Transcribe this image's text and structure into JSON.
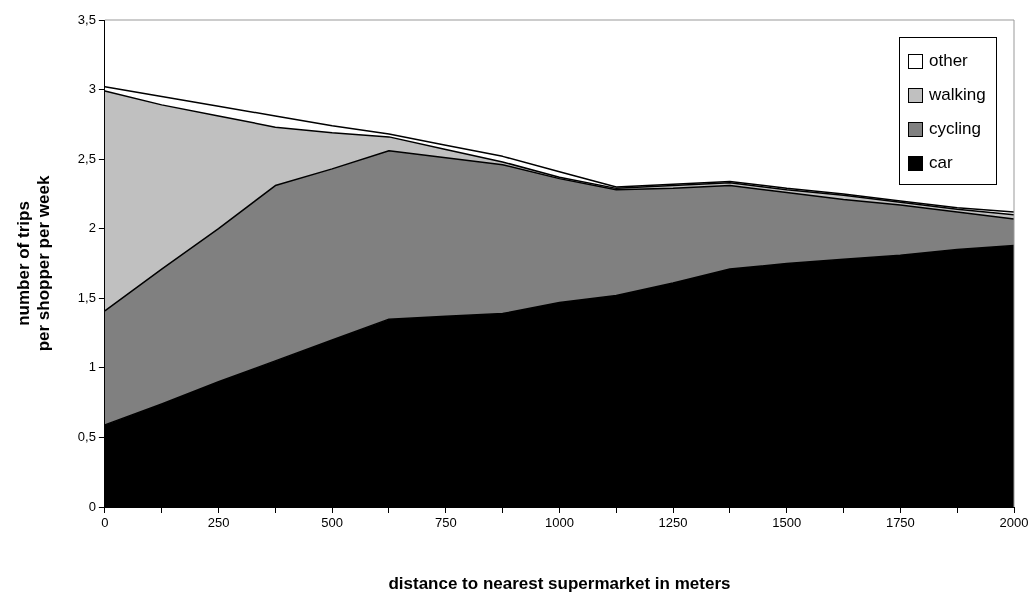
{
  "chart_data": {
    "type": "area",
    "stacked": true,
    "xlabel": "distance to nearest supermarket in meters",
    "ylabel": "number of trips\nper shopper per week",
    "x": [
      0,
      125,
      250,
      375,
      500,
      625,
      750,
      875,
      1000,
      1125,
      1250,
      1375,
      1500,
      1625,
      1750,
      1875,
      2000
    ],
    "series": [
      {
        "name": "car",
        "color": "#000000",
        "values": [
          0.59,
          0.74,
          0.9,
          1.05,
          1.2,
          1.35,
          1.37,
          1.39,
          1.47,
          1.52,
          1.61,
          1.71,
          1.75,
          1.78,
          1.81,
          1.85,
          1.88
        ]
      },
      {
        "name": "cycling",
        "color": "#808080",
        "values": [
          0.82,
          0.97,
          1.1,
          1.26,
          1.23,
          1.21,
          1.14,
          1.07,
          0.89,
          0.76,
          0.68,
          0.6,
          0.51,
          0.43,
          0.36,
          0.27,
          0.19
        ]
      },
      {
        "name": "walking",
        "color": "#c0c0c0",
        "values": [
          1.58,
          1.18,
          0.81,
          0.42,
          0.26,
          0.1,
          0.06,
          0.02,
          0.01,
          0.01,
          0.02,
          0.02,
          0.02,
          0.03,
          0.02,
          0.02,
          0.03
        ]
      },
      {
        "name": "other",
        "color": "#ffffff",
        "values": [
          0.03,
          0.06,
          0.07,
          0.08,
          0.05,
          0.02,
          0.03,
          0.04,
          0.04,
          0.01,
          0.01,
          0.01,
          0.01,
          0.01,
          0.01,
          0.01,
          0.02
        ]
      }
    ],
    "xlim": [
      0,
      2000
    ],
    "xticks": [
      0,
      {
        "value": 125,
        "label": null
      },
      250,
      {
        "value": 375,
        "label": null
      },
      500,
      {
        "value": 625,
        "label": null
      },
      750,
      {
        "value": 875,
        "label": null
      },
      1000,
      {
        "value": 1125,
        "label": null
      },
      1250,
      {
        "value": 1375,
        "label": null
      },
      1500,
      {
        "value": 1625,
        "label": null
      },
      1750,
      {
        "value": 1875,
        "label": null
      },
      2000
    ],
    "ylim": [
      0,
      3.5
    ],
    "yticks": [
      0,
      {
        "value": 0.5,
        "label": "0,5"
      },
      1,
      {
        "value": 1.5,
        "label": "1,5"
      },
      2,
      {
        "value": 2.5,
        "label": "2,5"
      },
      3,
      {
        "value": 3.5,
        "label": "3,5"
      }
    ],
    "grid": false,
    "legend": "top right",
    "marker": "none",
    "line_style": "solid"
  }
}
